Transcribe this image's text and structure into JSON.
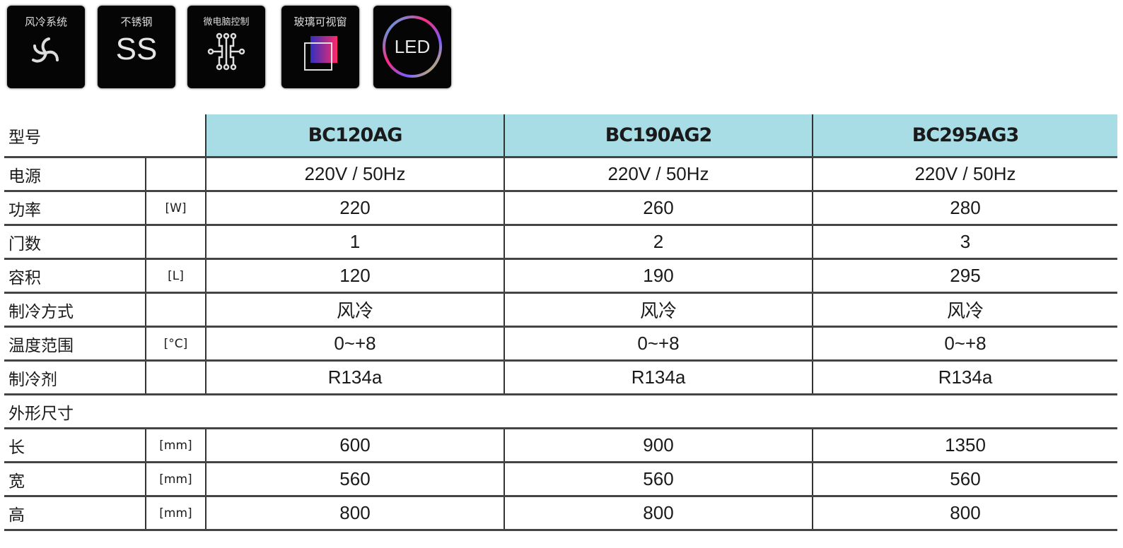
{
  "features": [
    {
      "label": "风冷系统",
      "icon": "fan-icon"
    },
    {
      "label": "不锈钢",
      "icon": "ss-icon",
      "glyph": "SS"
    },
    {
      "label": "微电脑控制",
      "icon": "circuit-icon"
    },
    {
      "label": "玻璃可视窗",
      "icon": "glass-window-icon"
    },
    {
      "label": "",
      "icon": "led-icon",
      "glyph": "LED"
    }
  ],
  "colors": {
    "header_bg": "#a9dde6",
    "badge_bg": "#050505"
  },
  "table": {
    "header": {
      "label": "型号",
      "models": [
        "BC120AG",
        "BC190AG2",
        "BC295AG3"
      ]
    },
    "rows": [
      {
        "label": "电源",
        "unit": "",
        "values": [
          "220V / 50Hz",
          "220V / 50Hz",
          "220V / 50Hz"
        ]
      },
      {
        "label": "功率",
        "unit": "[W]",
        "values": [
          "220",
          "260",
          "280"
        ]
      },
      {
        "label": "门数",
        "unit": "",
        "values": [
          "1",
          "2",
          "3"
        ]
      },
      {
        "label": "容积",
        "unit": "[L]",
        "values": [
          "120",
          "190",
          "295"
        ]
      },
      {
        "label": "制冷方式",
        "unit": "",
        "values": [
          "风冷",
          "风冷",
          "风冷"
        ]
      },
      {
        "label": "温度范围",
        "unit": "[°C]",
        "values": [
          "0~+8",
          "0~+8",
          "0~+8"
        ]
      },
      {
        "label": "制冷剂",
        "unit": "",
        "values": [
          "R134a",
          "R134a",
          "R134a"
        ]
      }
    ],
    "section": "外形尺寸",
    "dims": [
      {
        "label": "长",
        "unit": "[mm]",
        "values": [
          "600",
          "900",
          "1350"
        ]
      },
      {
        "label": "宽",
        "unit": "[mm]",
        "values": [
          "560",
          "560",
          "560"
        ]
      },
      {
        "label": "高",
        "unit": "[mm]",
        "values": [
          "800",
          "800",
          "800"
        ]
      }
    ]
  }
}
